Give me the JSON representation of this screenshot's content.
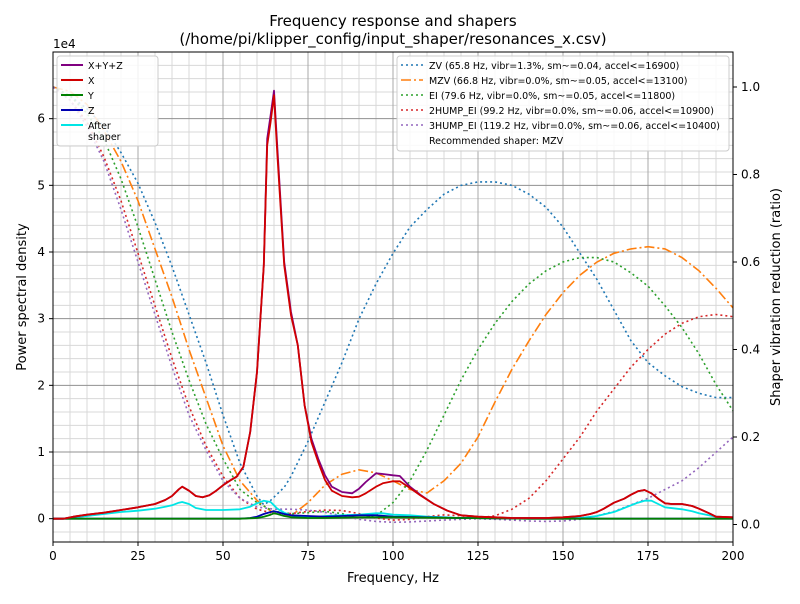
{
  "chart_data": {
    "type": "line",
    "title_line1": "Frequency response and shapers",
    "title_line2": "(/home/pi/klipper_config/input_shaper/resonances_x.csv)",
    "xlabel": "Frequency, Hz",
    "ylabel_left": "Power spectral density",
    "ylabel_right": "Shaper vibration reduction (ratio)",
    "left_scale_label": "1e4",
    "xlim": [
      0,
      200
    ],
    "ylim_left": [
      -0.35,
      7.0
    ],
    "ylim_right": [
      -0.04,
      1.08
    ],
    "x_ticks": [
      0,
      25,
      50,
      75,
      100,
      125,
      150,
      175,
      200
    ],
    "y_ticks_left": [
      0,
      1,
      2,
      3,
      4,
      5,
      6
    ],
    "y_ticks_right": [
      "0.0",
      "0.2",
      "0.4",
      "0.6",
      "0.8",
      "1.0"
    ],
    "grid": true,
    "legend_left_position": "upper-left",
    "legend_right_position": "upper-right",
    "psd_series": [
      {
        "name": "X+Y+Z",
        "color": "#800080",
        "x": [
          0,
          3,
          6,
          10,
          15,
          20,
          25,
          30,
          33,
          35,
          37,
          38,
          40,
          42,
          44,
          46,
          48,
          50,
          52,
          54,
          56,
          58,
          60,
          62,
          63,
          64,
          65,
          66,
          68,
          70,
          72,
          74,
          76,
          78,
          80,
          82,
          85,
          88,
          90,
          92,
          95,
          97,
          100,
          102,
          105,
          108,
          112,
          116,
          120,
          125,
          130,
          135,
          140,
          145,
          150,
          155,
          158,
          160,
          162,
          165,
          168,
          170,
          172,
          174,
          176,
          178,
          180,
          182,
          185,
          188,
          190,
          193,
          195,
          200
        ],
        "y": [
          0,
          0,
          0.03,
          0.06,
          0.09,
          0.13,
          0.17,
          0.22,
          0.28,
          0.34,
          0.44,
          0.48,
          0.42,
          0.34,
          0.32,
          0.35,
          0.42,
          0.5,
          0.57,
          0.63,
          0.78,
          1.3,
          2.2,
          3.8,
          5.7,
          6.05,
          6.42,
          5.55,
          3.85,
          3.1,
          2.6,
          1.7,
          1.2,
          0.9,
          0.65,
          0.48,
          0.4,
          0.38,
          0.45,
          0.55,
          0.68,
          0.67,
          0.65,
          0.64,
          0.48,
          0.36,
          0.22,
          0.12,
          0.05,
          0.03,
          0.02,
          0.01,
          0.01,
          0.01,
          0.02,
          0.04,
          0.07,
          0.1,
          0.15,
          0.24,
          0.3,
          0.36,
          0.41,
          0.43,
          0.38,
          0.3,
          0.23,
          0.22,
          0.22,
          0.19,
          0.15,
          0.08,
          0.03,
          0.02
        ]
      },
      {
        "name": "X",
        "color": "#d00000",
        "x": [
          0,
          3,
          6,
          10,
          15,
          20,
          25,
          30,
          33,
          35,
          37,
          38,
          40,
          42,
          44,
          46,
          48,
          50,
          52,
          54,
          56,
          58,
          60,
          62,
          63,
          64,
          65,
          66,
          68,
          70,
          72,
          74,
          76,
          78,
          80,
          82,
          85,
          88,
          90,
          92,
          95,
          97,
          100,
          102,
          105,
          108,
          112,
          116,
          120,
          125,
          130,
          135,
          140,
          145,
          150,
          155,
          158,
          160,
          162,
          165,
          168,
          170,
          172,
          174,
          176,
          178,
          180,
          182,
          185,
          188,
          190,
          193,
          195,
          200
        ],
        "y": [
          0,
          0,
          0.03,
          0.06,
          0.09,
          0.13,
          0.17,
          0.22,
          0.28,
          0.34,
          0.44,
          0.48,
          0.42,
          0.34,
          0.32,
          0.35,
          0.42,
          0.5,
          0.57,
          0.63,
          0.78,
          1.3,
          2.2,
          3.8,
          5.6,
          5.95,
          6.35,
          5.45,
          3.8,
          3.05,
          2.6,
          1.7,
          1.15,
          0.85,
          0.58,
          0.42,
          0.34,
          0.32,
          0.33,
          0.38,
          0.48,
          0.53,
          0.56,
          0.56,
          0.46,
          0.35,
          0.22,
          0.12,
          0.05,
          0.03,
          0.02,
          0.01,
          0.01,
          0.01,
          0.02,
          0.04,
          0.07,
          0.1,
          0.15,
          0.24,
          0.3,
          0.36,
          0.41,
          0.43,
          0.38,
          0.3,
          0.23,
          0.22,
          0.22,
          0.19,
          0.15,
          0.08,
          0.03,
          0.02
        ]
      },
      {
        "name": "Y",
        "color": "#008000",
        "x": [
          0,
          20,
          40,
          55,
          60,
          62,
          64,
          65,
          66,
          68,
          70,
          75,
          80,
          90,
          100,
          120,
          140,
          160,
          180,
          200
        ],
        "y": [
          0,
          0,
          0,
          0,
          0.01,
          0.03,
          0.06,
          0.08,
          0.07,
          0.04,
          0.02,
          0.01,
          0.01,
          0.02,
          0.02,
          0.01,
          0,
          0,
          0,
          0
        ]
      },
      {
        "name": "Z",
        "color": "#0000b0",
        "x": [
          0,
          20,
          40,
          55,
          58,
          60,
          62,
          64,
          65,
          66,
          68,
          70,
          75,
          80,
          85,
          90,
          95,
          100,
          110,
          120,
          140,
          160,
          180,
          200
        ],
        "y": [
          0,
          0,
          0,
          0,
          0.01,
          0.03,
          0.07,
          0.1,
          0.11,
          0.1,
          0.07,
          0.05,
          0.04,
          0.03,
          0.04,
          0.05,
          0.05,
          0.03,
          0.02,
          0.01,
          0,
          0,
          0,
          0
        ]
      },
      {
        "name": "After\nshaper",
        "color": "#00e5e5",
        "x": [
          0,
          3,
          6,
          10,
          15,
          20,
          25,
          30,
          33,
          35,
          37,
          38,
          40,
          42,
          45,
          50,
          55,
          58,
          60,
          62,
          64,
          65,
          66,
          68,
          70,
          72,
          75,
          78,
          80,
          85,
          90,
          95,
          97,
          100,
          105,
          110,
          115,
          120,
          125,
          130,
          140,
          150,
          155,
          160,
          165,
          168,
          170,
          172,
          174,
          176,
          178,
          180,
          185,
          188,
          190,
          195,
          200
        ],
        "y": [
          0,
          0,
          0.02,
          0.04,
          0.07,
          0.1,
          0.12,
          0.15,
          0.18,
          0.2,
          0.24,
          0.25,
          0.22,
          0.16,
          0.13,
          0.13,
          0.14,
          0.18,
          0.23,
          0.27,
          0.25,
          0.2,
          0.15,
          0.09,
          0.05,
          0.03,
          0.02,
          0.03,
          0.04,
          0.05,
          0.06,
          0.08,
          0.08,
          0.06,
          0.05,
          0.03,
          0.02,
          0.01,
          0.01,
          0.01,
          0.01,
          0.01,
          0.01,
          0.04,
          0.1,
          0.16,
          0.2,
          0.24,
          0.27,
          0.27,
          0.22,
          0.17,
          0.14,
          0.11,
          0.08,
          0.03,
          0.01
        ]
      }
    ],
    "shaper_series": [
      {
        "name": "ZV (65.8 Hz, vibr=1.3%, sm~=0.04, accel<=16900)",
        "color": "#1f77b4",
        "dash": "2,3",
        "x": [
          0,
          5,
          10,
          15,
          20,
          25,
          30,
          35,
          40,
          45,
          50,
          55,
          60,
          62,
          64,
          66,
          68,
          70,
          75,
          80,
          85,
          90,
          95,
          100,
          105,
          110,
          115,
          120,
          125,
          130,
          135,
          140,
          145,
          150,
          155,
          160,
          165,
          170,
          175,
          180,
          185,
          190,
          195,
          200
        ],
        "y": [
          1.0,
          0.98,
          0.95,
          0.91,
          0.85,
          0.78,
          0.69,
          0.59,
          0.48,
          0.37,
          0.25,
          0.14,
          0.065,
          0.045,
          0.055,
          0.07,
          0.085,
          0.11,
          0.19,
          0.28,
          0.37,
          0.47,
          0.55,
          0.62,
          0.68,
          0.72,
          0.755,
          0.775,
          0.783,
          0.783,
          0.775,
          0.755,
          0.725,
          0.68,
          0.62,
          0.56,
          0.49,
          0.42,
          0.37,
          0.34,
          0.315,
          0.3,
          0.29,
          0.29
        ]
      },
      {
        "name": "MZV (66.8 Hz, vibr=0.0%, sm~=0.05, accel<=13100)",
        "color": "#ff7f0e",
        "dash": "10,3,2,3",
        "x": [
          0,
          5,
          10,
          15,
          20,
          25,
          30,
          35,
          40,
          45,
          50,
          55,
          60,
          65,
          70,
          75,
          80,
          85,
          90,
          95,
          100,
          105,
          110,
          115,
          120,
          125,
          130,
          135,
          140,
          145,
          150,
          155,
          160,
          165,
          170,
          175,
          180,
          185,
          190,
          195,
          200
        ],
        "y": [
          1.0,
          0.99,
          0.96,
          0.9,
          0.83,
          0.74,
          0.63,
          0.52,
          0.4,
          0.29,
          0.18,
          0.1,
          0.055,
          0.025,
          0.02,
          0.05,
          0.09,
          0.115,
          0.125,
          0.118,
          0.1,
          0.08,
          0.072,
          0.1,
          0.14,
          0.2,
          0.28,
          0.355,
          0.42,
          0.48,
          0.53,
          0.57,
          0.6,
          0.62,
          0.63,
          0.635,
          0.63,
          0.61,
          0.58,
          0.54,
          0.495
        ]
      },
      {
        "name": "EI (79.6 Hz, vibr=0.0%, sm~=0.05, accel<=11800)",
        "color": "#2ca02c",
        "dash": "2,3",
        "x": [
          0,
          5,
          10,
          15,
          20,
          25,
          30,
          35,
          40,
          45,
          50,
          55,
          60,
          65,
          70,
          75,
          80,
          85,
          90,
          95,
          100,
          105,
          110,
          115,
          120,
          125,
          130,
          135,
          140,
          145,
          150,
          155,
          160,
          165,
          170,
          175,
          180,
          185,
          190,
          195,
          200
        ],
        "y": [
          1.0,
          0.98,
          0.94,
          0.88,
          0.79,
          0.68,
          0.56,
          0.44,
          0.33,
          0.23,
          0.15,
          0.08,
          0.05,
          0.03,
          0.025,
          0.027,
          0.03,
          0.025,
          0.015,
          0.02,
          0.05,
          0.1,
          0.17,
          0.25,
          0.33,
          0.4,
          0.46,
          0.51,
          0.55,
          0.58,
          0.6,
          0.61,
          0.61,
          0.6,
          0.575,
          0.545,
          0.5,
          0.45,
          0.39,
          0.32,
          0.26
        ]
      },
      {
        "name": "2HUMP_EI (99.2 Hz, vibr=0.0%, sm~=0.06, accel<=10900)",
        "color": "#d62728",
        "dash": "2,3",
        "x": [
          0,
          5,
          10,
          15,
          20,
          25,
          30,
          35,
          40,
          45,
          50,
          55,
          60,
          65,
          70,
          75,
          80,
          85,
          90,
          95,
          100,
          105,
          110,
          115,
          120,
          125,
          130,
          135,
          140,
          145,
          150,
          155,
          160,
          165,
          170,
          175,
          180,
          185,
          190,
          195,
          200
        ],
        "y": [
          1.0,
          0.97,
          0.92,
          0.84,
          0.74,
          0.62,
          0.5,
          0.38,
          0.27,
          0.18,
          0.11,
          0.06,
          0.035,
          0.025,
          0.025,
          0.03,
          0.033,
          0.032,
          0.025,
          0.015,
          0.01,
          0.012,
          0.018,
          0.022,
          0.02,
          0.015,
          0.02,
          0.035,
          0.06,
          0.1,
          0.15,
          0.2,
          0.26,
          0.31,
          0.36,
          0.4,
          0.435,
          0.46,
          0.475,
          0.48,
          0.475
        ]
      },
      {
        "name": "3HUMP_EI (119.2 Hz, vibr=0.0%, sm~=0.06, accel<=10400)",
        "color": "#9467bd",
        "dash": "2,3",
        "x": [
          0,
          5,
          10,
          15,
          20,
          25,
          30,
          35,
          40,
          45,
          50,
          55,
          60,
          65,
          70,
          75,
          80,
          85,
          90,
          95,
          100,
          105,
          110,
          115,
          120,
          125,
          130,
          135,
          140,
          145,
          150,
          155,
          160,
          165,
          170,
          175,
          180,
          185,
          190,
          195,
          200
        ],
        "y": [
          1.0,
          0.97,
          0.91,
          0.83,
          0.72,
          0.6,
          0.48,
          0.36,
          0.25,
          0.17,
          0.1,
          0.06,
          0.04,
          0.035,
          0.035,
          0.033,
          0.028,
          0.02,
          0.012,
          0.007,
          0.005,
          0.006,
          0.008,
          0.01,
          0.012,
          0.013,
          0.012,
          0.01,
          0.008,
          0.007,
          0.008,
          0.012,
          0.02,
          0.03,
          0.045,
          0.06,
          0.08,
          0.1,
          0.13,
          0.165,
          0.2
        ]
      }
    ],
    "recommendation": "Recommended shaper: MZV"
  }
}
